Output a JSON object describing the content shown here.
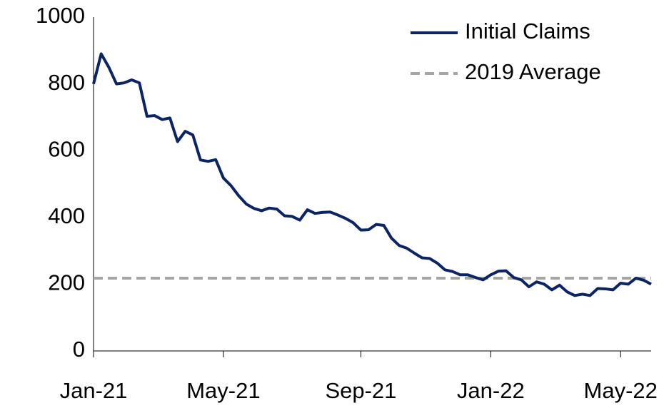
{
  "chart_data": {
    "type": "line",
    "categories": [
      "Jan-21",
      null,
      null,
      null,
      null,
      null,
      null,
      null,
      null,
      null,
      null,
      null,
      null,
      null,
      null,
      null,
      null,
      "May-21",
      null,
      null,
      null,
      null,
      null,
      null,
      null,
      null,
      null,
      null,
      null,
      null,
      null,
      null,
      null,
      null,
      null,
      "Sep-21",
      null,
      null,
      null,
      null,
      null,
      null,
      null,
      null,
      null,
      null,
      null,
      null,
      null,
      null,
      null,
      null,
      "Jan-22",
      null,
      null,
      null,
      null,
      null,
      null,
      null,
      null,
      null,
      null,
      null,
      null,
      null,
      null,
      null,
      null,
      "May-22",
      null,
      null,
      null,
      null
    ],
    "series": [
      {
        "name": "Initial Claims",
        "color": "#0b2463",
        "values": [
          800,
          890,
          850,
          800,
          803,
          812,
          803,
          703,
          705,
          693,
          698,
          627,
          658,
          647,
          572,
          568,
          573,
          518,
          495,
          465,
          440,
          427,
          420,
          428,
          425,
          405,
          403,
          392,
          423,
          412,
          415,
          416,
          407,
          397,
          384,
          362,
          363,
          379,
          376,
          338,
          316,
          308,
          293,
          279,
          277,
          263,
          243,
          238,
          228,
          228,
          220,
          213,
          228,
          239,
          240,
          220,
          213,
          192,
          207,
          200,
          183,
          197,
          177,
          166,
          170,
          166,
          187,
          186,
          183,
          203,
          200,
          218,
          212,
          200
        ]
      }
    ],
    "reference_lines": [
      {
        "name": "2019 Average",
        "value": 218,
        "color": "#a6a6a6",
        "style": "dashed"
      }
    ],
    "ylim": [
      0,
      1000
    ],
    "yticks": [
      0,
      200,
      400,
      600,
      800,
      1000
    ],
    "grid": false,
    "legend": "top-right"
  }
}
